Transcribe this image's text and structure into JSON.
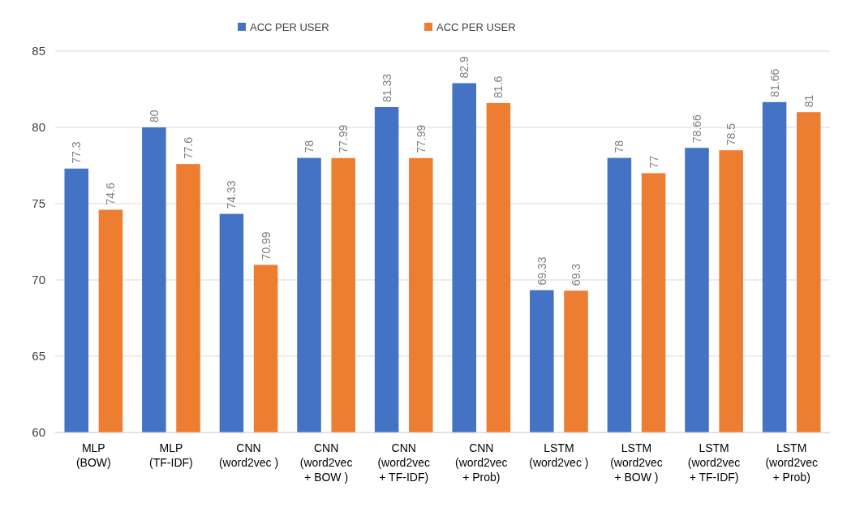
{
  "chart_data": {
    "type": "bar",
    "categories": [
      "MLP\n(BOW)",
      "MLP\n(TF-IDF)",
      "CNN\n(word2vec )",
      "CNN\n(word2vec\n+ BOW )",
      "CNN\n(word2vec\n+ TF-IDF)",
      "CNN\n(word2vec\n+ Prob)",
      "LSTM\n(word2vec )",
      "LSTM\n(word2vec\n+ BOW )",
      "LSTM\n(word2vec\n+ TF-IDF)",
      "LSTM\n(word2vec\n+ Prob)"
    ],
    "series": [
      {
        "name": "ACC PER USER",
        "color": "#4472c4",
        "values": [
          77.3,
          80,
          74.33,
          78,
          81.33,
          82.9,
          69.33,
          78,
          78.66,
          81.66
        ]
      },
      {
        "name": "ACC PER USER",
        "color": "#ed7d31",
        "values": [
          74.6,
          77.6,
          70.99,
          77.99,
          77.99,
          81.6,
          69.3,
          77,
          78.5,
          81
        ]
      }
    ],
    "ylim": [
      60,
      85
    ],
    "yticks": [
      60,
      65,
      70,
      75,
      80,
      85
    ],
    "grid": "y",
    "legend": "top",
    "data_labels": true
  }
}
